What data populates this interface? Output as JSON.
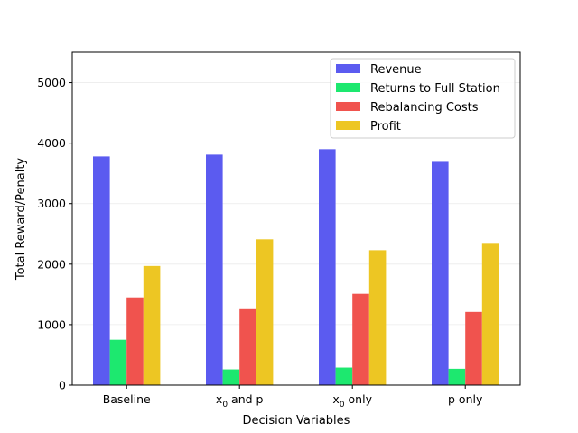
{
  "chart_data": {
    "type": "bar",
    "title": "",
    "xlabel": "Decision Variables",
    "ylabel": "Total Reward/Penalty",
    "ylim": [
      0,
      5500
    ],
    "yticks": [
      0,
      1000,
      2000,
      3000,
      4000,
      5000
    ],
    "grid": "horizontal, light",
    "legend_position": "top-right",
    "categories": [
      {
        "base": "Baseline",
        "sub": "",
        "rest": ""
      },
      {
        "base": "x",
        "sub": "0",
        "rest": " and p"
      },
      {
        "base": "x",
        "sub": "0",
        "rest": " only"
      },
      {
        "base": "p only",
        "sub": "",
        "rest": ""
      }
    ],
    "series": [
      {
        "name": "Revenue",
        "color": "#5b5bf0",
        "values": [
          3780,
          3810,
          3900,
          3690
        ]
      },
      {
        "name": "Returns to Full Station",
        "color": "#1de86f",
        "values": [
          750,
          260,
          290,
          270
        ]
      },
      {
        "name": "Rebalancing Costs",
        "color": "#f0534e",
        "values": [
          1450,
          1270,
          1510,
          1210
        ]
      },
      {
        "name": "Profit",
        "color": "#edc623",
        "values": [
          1970,
          2410,
          2230,
          2350
        ]
      }
    ]
  }
}
